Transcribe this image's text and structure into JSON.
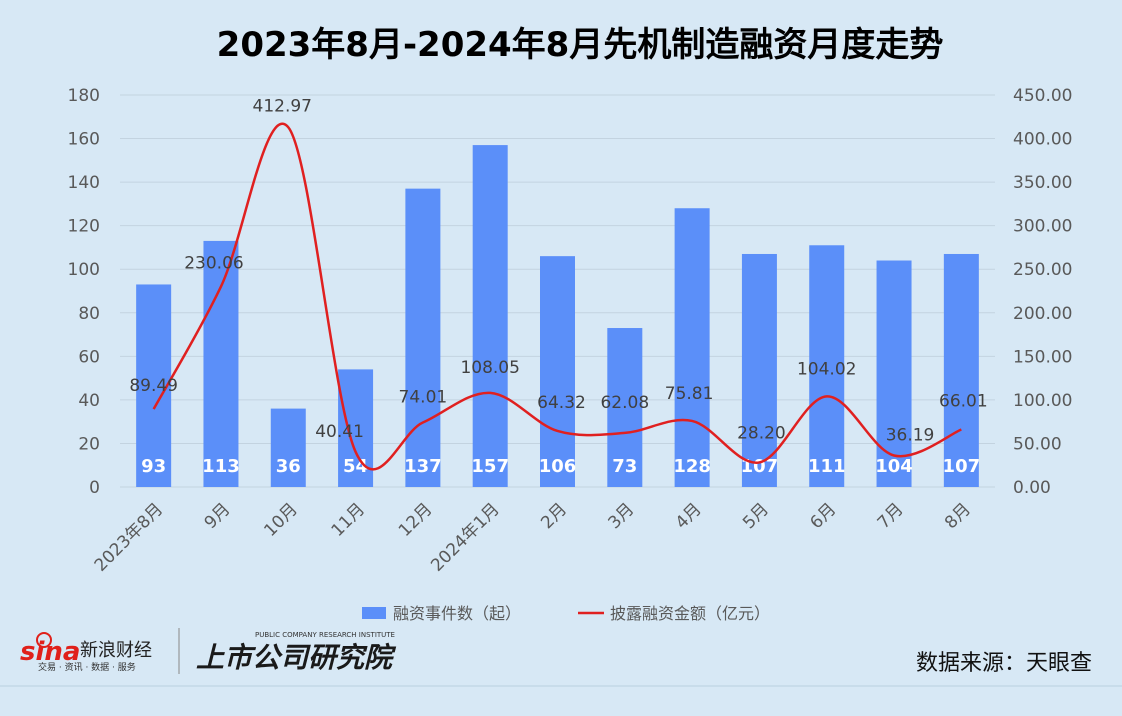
{
  "chart_data": {
    "type": "bar",
    "title": "2023年8月-2024年8月先机制造融资月度走势",
    "categories": [
      "2023年8月",
      "9月",
      "10月",
      "11月",
      "12月",
      "2024年1月",
      "2月",
      "3月",
      "4月",
      "5月",
      "6月",
      "7月",
      "8月"
    ],
    "series": [
      {
        "name": "融资事件数（起）",
        "type": "bar",
        "axis": "left",
        "color": "#5b8ff9",
        "values": [
          93,
          113,
          36,
          54,
          137,
          157,
          106,
          73,
          128,
          107,
          111,
          104,
          107
        ],
        "labels": [
          "93",
          "113",
          "36",
          "54",
          "137",
          "157",
          "106",
          "73",
          "128",
          "107",
          "111",
          "104",
          "107"
        ]
      },
      {
        "name": "披露融资金额（亿元）",
        "type": "line",
        "axis": "right",
        "color": "#e02020",
        "values": [
          89.49,
          230.06,
          412.97,
          40.41,
          74.01,
          108.05,
          64.32,
          62.08,
          75.81,
          28.2,
          104.02,
          36.19,
          66.01
        ],
        "labels": [
          "89.49",
          "230.06",
          "412.97",
          "40.41",
          "74.01",
          "108.05",
          "64.32",
          "62.08",
          "75.81",
          "28.20",
          "104.02",
          "36.19",
          "66.01"
        ]
      }
    ],
    "y_left": {
      "min": 0,
      "max": 180,
      "step": 20,
      "ticks": [
        "0",
        "20",
        "40",
        "60",
        "80",
        "100",
        "120",
        "140",
        "160",
        "180"
      ]
    },
    "y_right": {
      "min": 0,
      "max": 450,
      "step": 50,
      "ticks": [
        "0.00",
        "50.00",
        "100.00",
        "150.00",
        "200.00",
        "250.00",
        "300.00",
        "350.00",
        "400.00",
        "450.00"
      ]
    },
    "grid": true,
    "legend_position": "bottom"
  },
  "footer": {
    "source": "数据来源：天眼查",
    "logo_sina": "sina",
    "logo_sina_cn": "新浪财经",
    "logo_sina_sub": "交易 · 资讯 · 数据 · 服务",
    "logo_institute": "上市公司研究院",
    "logo_institute_en": "PUBLIC COMPANY RESEARCH INSTITUTE"
  },
  "colors": {
    "background": "#d7e8f5",
    "bar": "#5b8ff9",
    "line": "#e02020"
  }
}
